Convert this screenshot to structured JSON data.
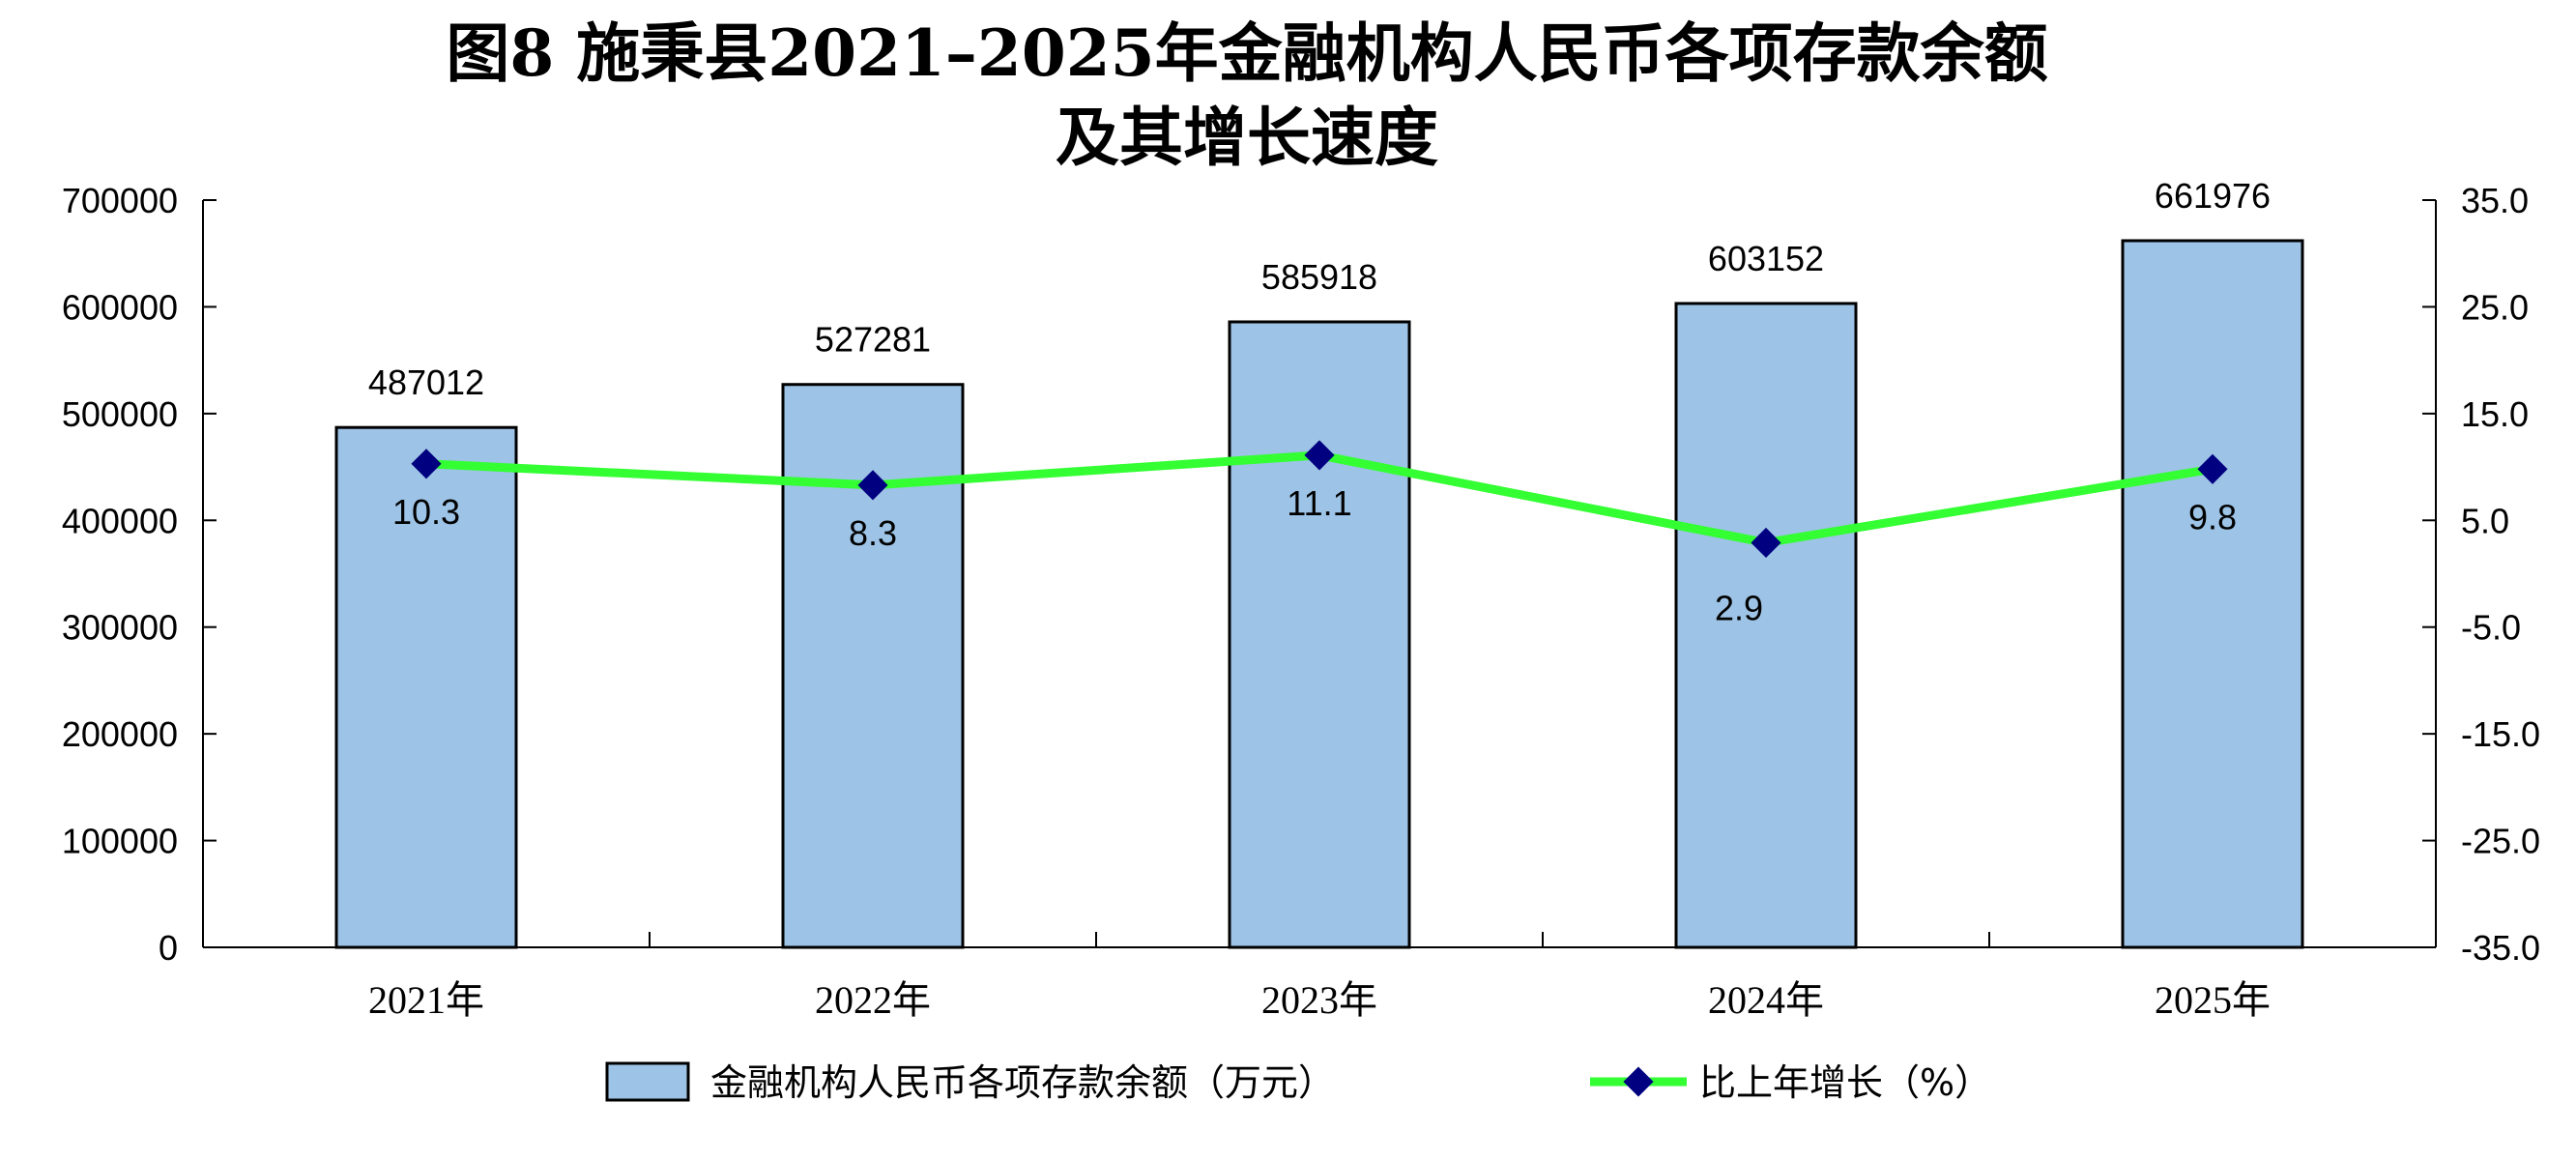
{
  "chart_data": {
    "type": "bar",
    "title_line1": "图8  施秉县2021–2025年金融机构人民币各项存款余额",
    "title_line2": "及其增长速度",
    "categories": [
      "2021年",
      "2022年",
      "2023年",
      "2024年",
      "2025年"
    ],
    "series": [
      {
        "name": "金融机构人民币各项存款余额（万元）",
        "type": "bar",
        "axis": "left",
        "color": "#9dc3e6",
        "values": [
          487012,
          527281,
          585918,
          603152,
          661976
        ],
        "labels": [
          "487012",
          "527281",
          "585918",
          "603152",
          "661976"
        ]
      },
      {
        "name": "比上年增长（%）",
        "type": "line",
        "axis": "right",
        "color": "#33ff33",
        "marker_color": "#000080",
        "values": [
          10.3,
          8.3,
          11.1,
          2.9,
          9.8
        ],
        "labels": [
          "10.3",
          "8.3",
          "11.1",
          "2.9",
          "9.8"
        ]
      }
    ],
    "y_left": {
      "min": 0,
      "max": 700000,
      "step": 100000,
      "ticks": [
        "0",
        "100000",
        "200000",
        "300000",
        "400000",
        "500000",
        "600000",
        "700000"
      ]
    },
    "y_right": {
      "min": -35,
      "max": 35,
      "step": 10,
      "ticks": [
        "-35.0",
        "-25.0",
        "-15.0",
        "-5.0",
        "5.0",
        "15.0",
        "25.0",
        "35.0"
      ]
    },
    "grid": false,
    "legend_position": "bottom"
  }
}
